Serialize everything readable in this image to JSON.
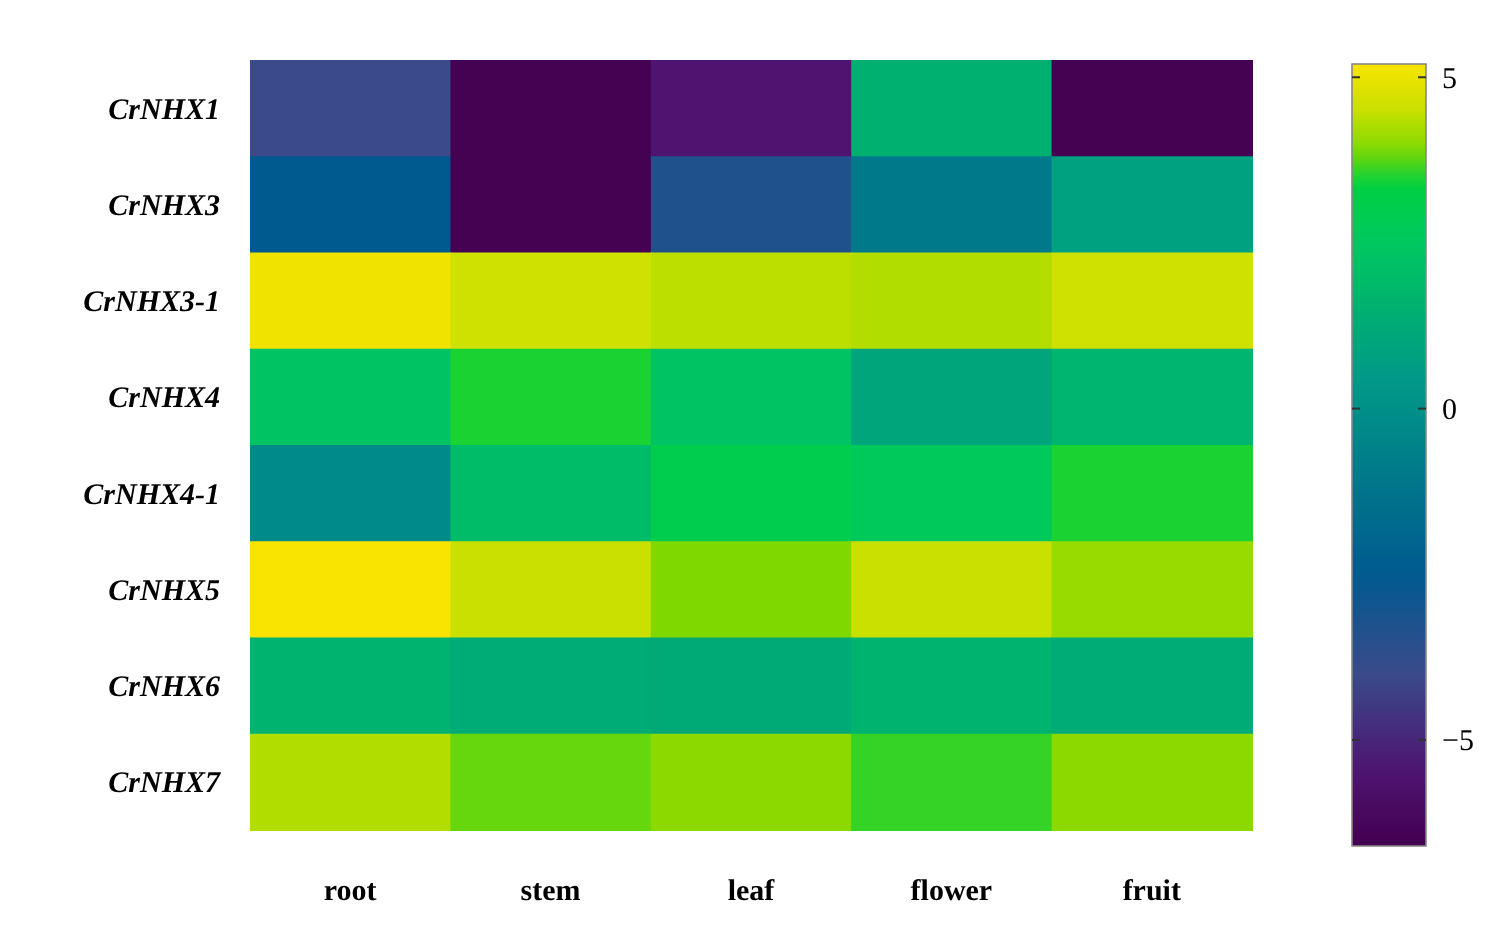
{
  "chart_data": {
    "type": "heatmap",
    "categories": [
      "root",
      "stem",
      "leaf",
      "flower",
      "fruit"
    ],
    "y_categories": [
      "CrNHX1",
      "CrNHX3",
      "CrNHX3-1",
      "CrNHX4",
      "CrNHX4-1",
      "CrNHX5",
      "CrNHX6",
      "CrNHX7"
    ],
    "cells": [
      [
        -4,
        -6.5,
        -5.5,
        1.5,
        -6.5
      ],
      [
        -2.5,
        -6.5,
        -3.3,
        -1,
        0.8
      ],
      [
        5.1,
        4.6,
        4.4,
        4.3,
        4.6
      ],
      [
        2.3,
        3.5,
        2.3,
        1,
        1.7
      ],
      [
        -0.2,
        2,
        3,
        2.6,
        3.5
      ],
      [
        5.2,
        4.5,
        3.9,
        4.5,
        4.1
      ],
      [
        1.6,
        1.3,
        1.2,
        1.6,
        1.3
      ],
      [
        4.3,
        3.8,
        4,
        3.6,
        4
      ]
    ],
    "clim": [
      -6.6,
      5.2
    ],
    "cticks": [
      {
        "value": -5,
        "label": "−5"
      },
      0,
      5
    ]
  }
}
